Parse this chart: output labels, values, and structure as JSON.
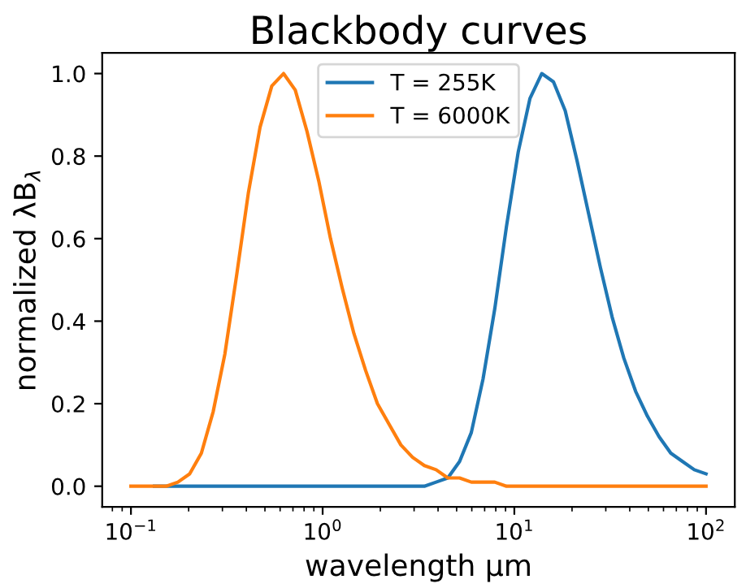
{
  "chart_data": {
    "type": "line",
    "title": "Blackbody curves",
    "xlabel": "wavelength μm",
    "ylabel": "normalized λB$_{λ}$",
    "x": [
      0.1,
      0.1151,
      0.1326,
      0.1527,
      0.1758,
      0.2024,
      0.233,
      0.2683,
      0.3089,
      0.3556,
      0.4095,
      0.4715,
      0.5429,
      0.6251,
      0.7197,
      0.8286,
      0.9541,
      1.099,
      1.265,
      1.456,
      1.677,
      1.931,
      2.223,
      2.56,
      2.947,
      3.393,
      3.907,
      4.498,
      5.18,
      5.964,
      6.866,
      7.906,
      9.103,
      10.48,
      12.07,
      13.9,
      16.0,
      18.42,
      21.21,
      24.42,
      28.12,
      32.37,
      37.28,
      42.92,
      49.42,
      56.9,
      65.51,
      75.43,
      86.85,
      100
    ],
    "series": [
      {
        "name": "T = 255K",
        "color": "#1f77b4",
        "values": [
          null,
          null,
          0,
          0,
          0,
          0,
          0,
          0,
          0,
          0,
          0,
          0,
          0,
          0,
          0,
          0,
          0,
          0,
          0,
          0,
          0,
          0,
          0,
          0,
          0,
          0,
          0.01,
          0.02,
          0.06,
          0.13,
          0.26,
          0.43,
          0.63,
          0.81,
          0.94,
          1.0,
          0.98,
          0.91,
          0.79,
          0.66,
          0.53,
          0.41,
          0.31,
          0.23,
          0.17,
          0.12,
          0.08,
          0.06,
          0.04,
          0.03
        ]
      },
      {
        "name": "T = 6000K",
        "color": "#ff7f0e",
        "values": [
          0,
          0,
          0,
          0,
          0.01,
          0.03,
          0.08,
          0.18,
          0.32,
          0.51,
          0.71,
          0.87,
          0.97,
          1.0,
          0.96,
          0.86,
          0.74,
          0.6,
          0.48,
          0.37,
          0.28,
          0.2,
          0.15,
          0.1,
          0.07,
          0.05,
          0.04,
          0.02,
          0.02,
          0.01,
          0.01,
          0.01,
          0,
          0,
          0,
          0,
          0,
          0,
          0,
          0,
          0,
          0,
          0,
          0,
          0,
          0,
          0,
          0,
          0,
          0
        ]
      }
    ],
    "log": "x",
    "xlim": [
      0.0708,
      141.3
    ],
    "xticks": [
      {
        "value": 0.1,
        "label": "10$^{−1}$"
      },
      {
        "value": 1,
        "label": "10$^{0}$"
      },
      {
        "value": 10,
        "label": "10$^{1}$"
      },
      {
        "value": 100,
        "label": "10$^{2}$"
      }
    ],
    "ylim": [
      -0.05,
      1.05
    ],
    "yticks": [
      {
        "value": 0,
        "label": "0.0"
      },
      {
        "value": 0.2,
        "label": "0.2"
      },
      {
        "value": 0.4,
        "label": "0.4"
      },
      {
        "value": 0.6,
        "label": "0.6"
      },
      {
        "value": 0.8,
        "label": "0.8"
      },
      {
        "value": 1,
        "label": "1.0"
      }
    ],
    "legend": "top center",
    "grid": false
  }
}
